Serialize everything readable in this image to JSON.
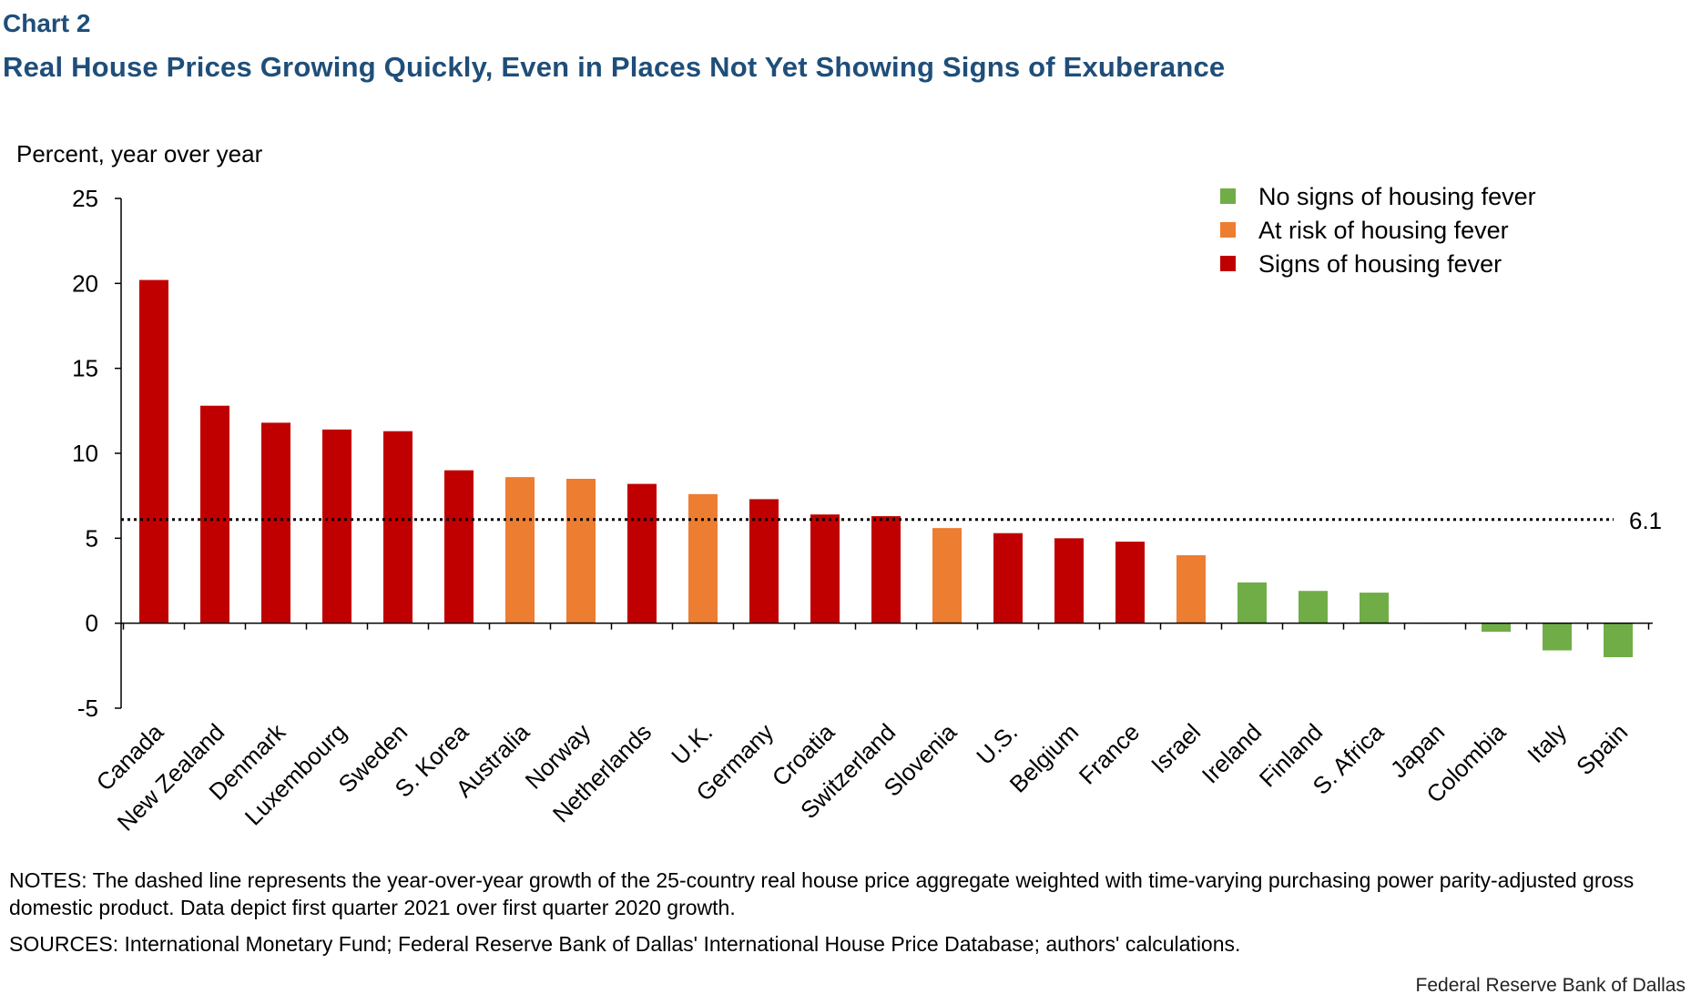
{
  "header": {
    "chart_label": "Chart 2",
    "title": "Real House Prices Growing Quickly, Even in Places Not Yet Showing Signs of Exuberance"
  },
  "footer": {
    "notes": "NOTES: The dashed line represents the year-over-year  growth of the 25-country real house price aggregate weighted with time-varying purchasing power parity-adjusted gross domestic product. Data depict first quarter 2021 over first quarter 2020 growth.",
    "sources": "SOURCES: International Monetary Fund; Federal Reserve  Bank of Dallas' International House Price Database; authors' calculations.",
    "credit": "Federal Reserve Bank of Dallas"
  },
  "colors": {
    "none": "#70ad47",
    "risk": "#ed7d31",
    "fever": "#c00000",
    "title": "#1f4e79"
  },
  "chart_data": {
    "type": "bar",
    "ylabel": "Percent, year over year",
    "ylim": [
      -5,
      25
    ],
    "yticks": [
      -5,
      0,
      5,
      10,
      15,
      20,
      25
    ],
    "grid": false,
    "legend_position": "top-right",
    "legend": [
      {
        "key": "none",
        "label": "No signs of housing fever"
      },
      {
        "key": "risk",
        "label": "At risk of housing fever"
      },
      {
        "key": "fever",
        "label": "Signs of housing fever"
      }
    ],
    "reference_line": {
      "value": 6.1,
      "label": "6.1",
      "style": "dotted"
    },
    "categories": [
      "Canada",
      "New Zealand",
      "Denmark",
      "Luxembourg",
      "Sweden",
      "S. Korea",
      "Australia",
      "Norway",
      "Netherlands",
      "U.K.",
      "Germany",
      "Croatia",
      "Switzerland",
      "Slovenia",
      "U.S.",
      "Belgium",
      "France",
      "Israel",
      "Ireland",
      "Finland",
      "S. Africa",
      "Japan",
      "Colombia",
      "Italy",
      "Spain"
    ],
    "values": [
      20.2,
      12.8,
      11.8,
      11.4,
      11.3,
      9.0,
      8.6,
      8.5,
      8.2,
      7.6,
      7.3,
      6.4,
      6.3,
      5.6,
      5.3,
      5.0,
      4.8,
      4.0,
      2.4,
      1.9,
      1.8,
      0.0,
      -0.5,
      -1.6,
      -2.0
    ],
    "status": [
      "fever",
      "fever",
      "fever",
      "fever",
      "fever",
      "fever",
      "risk",
      "risk",
      "fever",
      "risk",
      "fever",
      "fever",
      "fever",
      "risk",
      "fever",
      "fever",
      "fever",
      "risk",
      "none",
      "none",
      "none",
      "none",
      "none",
      "none",
      "none"
    ]
  }
}
